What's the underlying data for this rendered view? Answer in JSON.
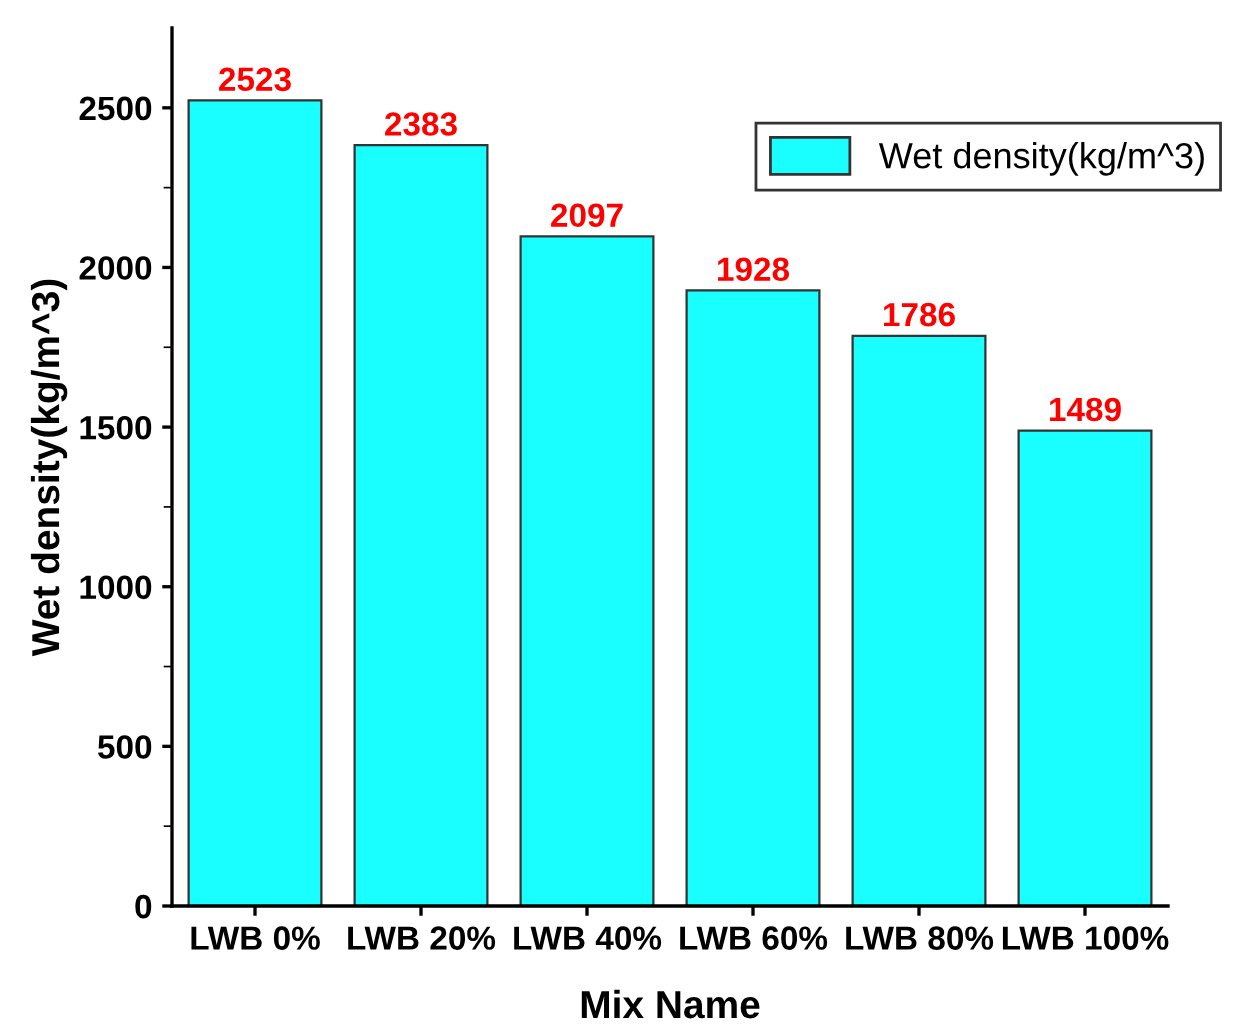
{
  "chart_data": {
    "type": "bar",
    "xlabel": "Mix Name",
    "ylabel": "Wet density(kg/m^3)",
    "categories": [
      "LWB 0%",
      "LWB 20%",
      "LWB 40%",
      "LWB 60%",
      "LWB 80%",
      "LWB 100%"
    ],
    "series": [
      {
        "name": "Wet density(kg/m^3)",
        "color": "#19ffff",
        "values": [
          2523,
          2383,
          2097,
          1928,
          1786,
          1489
        ]
      }
    ],
    "data_labels": true,
    "ylim": [
      0,
      2750
    ],
    "yticks": [
      0,
      {
        "value": 250,
        "label": null
      },
      500,
      {
        "value": 750,
        "label": null
      },
      1000,
      {
        "value": 1250,
        "label": null
      },
      1500,
      {
        "value": 1750,
        "label": null
      },
      2000,
      {
        "value": 2250,
        "label": null
      },
      2500
    ],
    "grid": false,
    "legend": "top right"
  }
}
